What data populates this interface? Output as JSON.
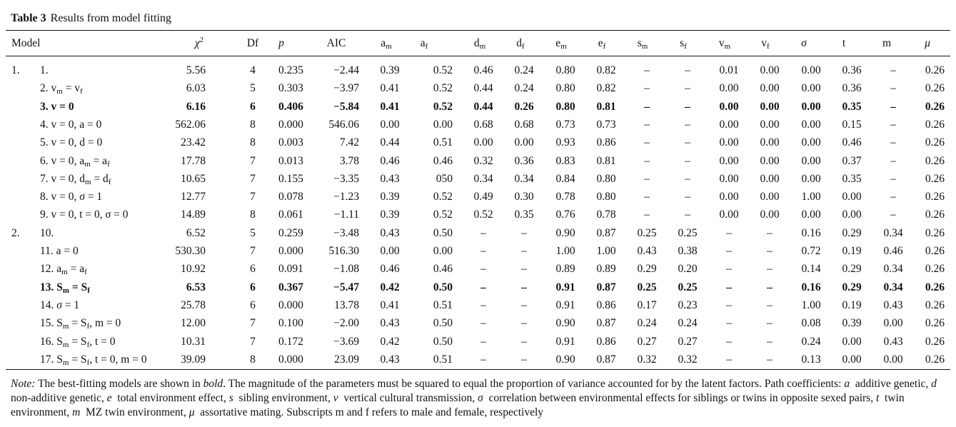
{
  "caption": {
    "label": "Table 3",
    "title": "Results from model fitting"
  },
  "headers": [
    {
      "k": "model",
      "html": "Model"
    },
    {
      "k": "chi",
      "html": "<i>χ</i><sup>2</sup>"
    },
    {
      "k": "df",
      "html": "Df"
    },
    {
      "k": "p",
      "html": "<i>p</i>"
    },
    {
      "k": "aic",
      "html": "AIC"
    },
    {
      "k": "am",
      "html": "a<sub>m</sub>"
    },
    {
      "k": "af",
      "html": "a<sub>f</sub>"
    },
    {
      "k": "dm",
      "html": "d<sub>m</sub>"
    },
    {
      "k": "df2",
      "html": "d<sub>f</sub>"
    },
    {
      "k": "em",
      "html": "e<sub>m</sub>"
    },
    {
      "k": "ef",
      "html": "e<sub>f</sub>"
    },
    {
      "k": "sm",
      "html": "s<sub>m</sub>"
    },
    {
      "k": "sf",
      "html": "s<sub>f</sub>"
    },
    {
      "k": "vm",
      "html": "v<sub>m</sub>"
    },
    {
      "k": "vf",
      "html": "v<sub>f</sub>"
    },
    {
      "k": "sigma",
      "html": "<i>σ</i>"
    },
    {
      "k": "t",
      "html": "t"
    },
    {
      "k": "m",
      "html": "m"
    },
    {
      "k": "mu",
      "html": "<i>μ</i>"
    }
  ],
  "rows": [
    {
      "group": "1.",
      "model": "1.",
      "bold": false,
      "v": [
        "5.56",
        "4",
        "0.235",
        "−2.44",
        "0.39",
        "0.52",
        "0.46",
        "0.24",
        "0.80",
        "0.82",
        "–",
        "–",
        "0.01",
        "0.00",
        "0.00",
        "0.36",
        "–",
        "0.26"
      ]
    },
    {
      "group": "",
      "model": "2. v<sub>m</sub> = v<sub>f</sub>",
      "bold": false,
      "v": [
        "6.03",
        "5",
        "0.303",
        "−3.97",
        "0.41",
        "0.52",
        "0.44",
        "0.24",
        "0.80",
        "0.82",
        "–",
        "–",
        "0.00",
        "0.00",
        "0.00",
        "0.36",
        "–",
        "0.26"
      ]
    },
    {
      "group": "",
      "model": "3. v = 0",
      "bold": true,
      "v": [
        "6.16",
        "6",
        "0.406",
        "−5.84",
        "0.41",
        "0.52",
        "0.44",
        "0.26",
        "0.80",
        "0.81",
        "–",
        "–",
        "0.00",
        "0.00",
        "0.00",
        "0.35",
        "–",
        "0.26"
      ]
    },
    {
      "group": "",
      "model": "4. v = 0, a = 0",
      "bold": false,
      "v": [
        "562.06",
        "8",
        "0.000",
        "546.06",
        "0.00",
        "0.00",
        "0.68",
        "0.68",
        "0.73",
        "0.73",
        "–",
        "–",
        "0.00",
        "0.00",
        "0.00",
        "0.15",
        "–",
        "0.26"
      ]
    },
    {
      "group": "",
      "model": "5. v = 0, d = 0",
      "bold": false,
      "v": [
        "23.42",
        "8",
        "0.003",
        "7.42",
        "0.44",
        "0.51",
        "0.00",
        "0.00",
        "0.93",
        "0.86",
        "–",
        "–",
        "0.00",
        "0.00",
        "0.00",
        "0.46",
        "–",
        "0.26"
      ]
    },
    {
      "group": "",
      "model": "6. v = 0, a<sub>m</sub> = a<sub>f</sub>",
      "bold": false,
      "v": [
        "17.78",
        "7",
        "0.013",
        "3.78",
        "0.46",
        "0.46",
        "0.32",
        "0.36",
        "0.83",
        "0.81",
        "–",
        "–",
        "0.00",
        "0.00",
        "0.00",
        "0.37",
        "–",
        "0.26"
      ]
    },
    {
      "group": "",
      "model": "7. v = 0, d<sub>m</sub> = d<sub>f</sub>",
      "bold": false,
      "v": [
        "10.65",
        "7",
        "0.155",
        "−3.35",
        "0.43",
        "050",
        "0.34",
        "0.34",
        "0.84",
        "0.80",
        "–",
        "–",
        "0.00",
        "0.00",
        "0.00",
        "0.35",
        "–",
        "0.26"
      ]
    },
    {
      "group": "",
      "model": "8. v = 0, <i>σ</i> = 1",
      "bold": false,
      "v": [
        "12.77",
        "7",
        "0.078",
        "−1.23",
        "0.39",
        "0.52",
        "0.49",
        "0.30",
        "0.78",
        "0.80",
        "–",
        "–",
        "0.00",
        "0.00",
        "1.00",
        "0.00",
        "–",
        "0.26"
      ]
    },
    {
      "group": "",
      "model": "9. v = 0, t = 0, <i>σ</i> = 0",
      "bold": false,
      "v": [
        "14.89",
        "8",
        "0.061",
        "−1.11",
        "0.39",
        "0.52",
        "0.52",
        "0.35",
        "0.76",
        "0.78",
        "–",
        "–",
        "0.00",
        "0.00",
        "0.00",
        "0.00",
        "–",
        "0.26"
      ]
    },
    {
      "group": "2.",
      "model": "10.",
      "bold": false,
      "v": [
        "6.52",
        "5",
        "0.259",
        "−3.48",
        "0.43",
        "0.50",
        "–",
        "–",
        "0.90",
        "0.87",
        "0.25",
        "0.25",
        "–",
        "–",
        "0.16",
        "0.29",
        "0.34",
        "0.26"
      ]
    },
    {
      "group": "",
      "model": "11. a = 0",
      "bold": false,
      "v": [
        "530.30",
        "7",
        "0.000",
        "516.30",
        "0.00",
        "0.00",
        "–",
        "–",
        "1.00",
        "1.00",
        "0.43",
        "0.38",
        "–",
        "–",
        "0.72",
        "0.19",
        "0.46",
        "0.26"
      ]
    },
    {
      "group": "",
      "model": "12. a<sub>m</sub> = a<sub>f</sub>",
      "bold": false,
      "v": [
        "10.92",
        "6",
        "0.091",
        "−1.08",
        "0.46",
        "0.46",
        "–",
        "–",
        "0.89",
        "0.89",
        "0.29",
        "0.20",
        "–",
        "–",
        "0.14",
        "0.29",
        "0.34",
        "0.26"
      ]
    },
    {
      "group": "",
      "model": "13. S<sub>m</sub> = S<sub>f</sub>",
      "bold": true,
      "v": [
        "6.53",
        "6",
        "0.367",
        "−5.47",
        "0.42",
        "0.50",
        "–",
        "–",
        "0.91",
        "0.87",
        "0.25",
        "0.25",
        "–",
        "–",
        "0.16",
        "0.29",
        "0.34",
        "0.26"
      ]
    },
    {
      "group": "",
      "model": "14. <i>σ</i> = 1",
      "bold": false,
      "v": [
        "25.78",
        "6",
        "0.000",
        "13.78",
        "0.41",
        "0.51",
        "–",
        "–",
        "0.91",
        "0.86",
        "0.17",
        "0.23",
        "–",
        "–",
        "1.00",
        "0.19",
        "0.43",
        "0.26"
      ]
    },
    {
      "group": "",
      "model": "15. S<sub>m</sub> = S<sub>f</sub>, m = 0",
      "bold": false,
      "v": [
        "12.00",
        "7",
        "0.100",
        "−2.00",
        "0.43",
        "0.50",
        "–",
        "–",
        "0.90",
        "0.87",
        "0.24",
        "0.24",
        "–",
        "–",
        "0.08",
        "0.39",
        "0.00",
        "0.26"
      ]
    },
    {
      "group": "",
      "model": "16. S<sub>m</sub> = S<sub>f</sub>, t = 0",
      "bold": false,
      "v": [
        "10.31",
        "7",
        "0.172",
        "−3.69",
        "0.42",
        "0.50",
        "–",
        "–",
        "0.91",
        "0.86",
        "0.27",
        "0.27",
        "–",
        "–",
        "0.24",
        "0.00",
        "0.43",
        "0.26"
      ]
    },
    {
      "group": "",
      "model": "17. S<sub>m</sub> = S<sub>f</sub>, t = 0, m = 0",
      "bold": false,
      "v": [
        "39.09",
        "8",
        "0.000",
        "23.09",
        "0.43",
        "0.51",
        "–",
        "–",
        "0.90",
        "0.87",
        "0.32",
        "0.32",
        "–",
        "–",
        "0.13",
        "0.00",
        "0.00",
        "0.26"
      ]
    }
  ],
  "note_html": "<i>Note:</i> The best-fitting models are shown in <i>bold</i>. The magnitude of the parameters must be squared to equal the proportion of variance accounted for by the latent factors. Path coefficients: <i>a</i>&nbsp; additive genetic, <i>d</i>&nbsp; non-additive genetic, <i>e</i>&nbsp; total environment effect, <i>s</i>&nbsp; sibling environment, <i>v</i>&nbsp; vertical cultural transmission, <i>σ</i>&nbsp; correlation between environmental effects for siblings or twins in opposite sexed pairs, <i>t</i>&nbsp; twin environment, <i>m</i>&nbsp; MZ twin environment, <i>μ</i>&nbsp; assortative mating. Subscripts m and f refers to male and female, respectively"
}
